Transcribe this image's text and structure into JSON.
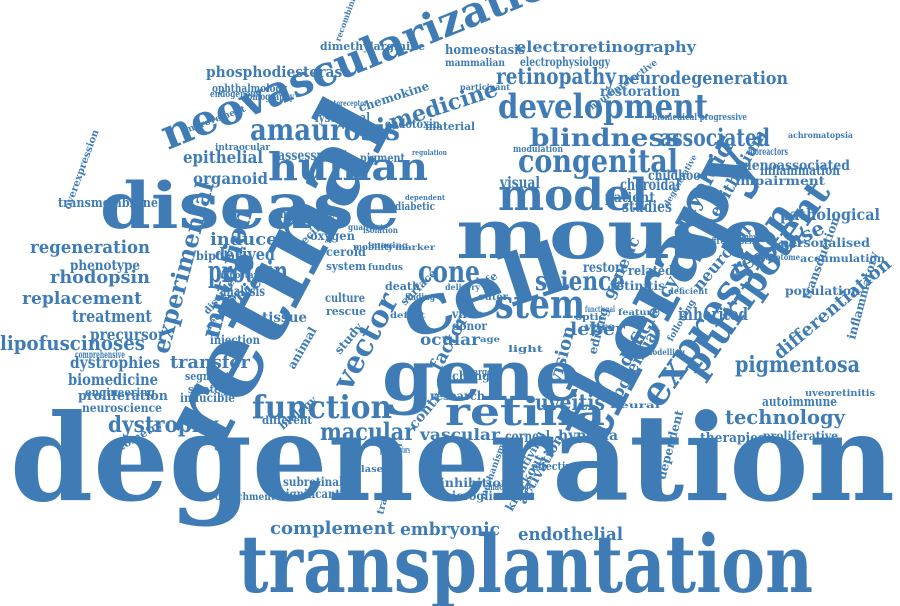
{
  "colors": {
    "word": "#3f7cb5",
    "background": "#ffffff"
  },
  "words": [
    "degeneration",
    "transplantation",
    "retinal",
    "therapy",
    "disease",
    "mouse",
    "gene",
    "cell",
    "neovascularization",
    "model",
    "expression",
    "retina",
    "development",
    "human",
    "amaurosis",
    "congenital",
    "stem",
    "function",
    "pluripotent",
    "protein",
    "mutation",
    "experimental",
    "blindness",
    "associated",
    "retinopathy",
    "neurodegeneration",
    "science",
    "vector",
    "pigmentosa",
    "technology",
    "macular",
    "uveitis",
    "regeneration",
    "replacement",
    "lipofuscinoses",
    "dystrophy",
    "dystrophies",
    "endothelial",
    "embryonic",
    "complement",
    "electroretinography",
    "phosphodiesterase",
    "rhodopsin",
    "treatment",
    "transfer",
    "derived",
    "induced",
    "clinical",
    "cone",
    "epithelial",
    "organoid",
    "myeloid",
    "epithelium",
    "inherited",
    "leber",
    "genetic",
    "visual",
    "vision",
    "vascular",
    "corneal",
    "hypoxia",
    "differentiation",
    "response",
    "neuronal",
    "inflammation",
    "adenoassociated",
    "studies",
    "choroidal",
    "patient",
    "childhood",
    "restoration",
    "homeostasis",
    "electrophysiology",
    "biomedicine",
    "proliferation",
    "neuroscience",
    "precursor",
    "phenotype",
    "medicine",
    "assessment",
    "pigment",
    "restore",
    "related",
    "autoimmune",
    "therapies",
    "proliferative",
    "transmembrane",
    "dimethylarginine",
    "ophthalmology",
    "chemokine",
    "lysosomal",
    "endotoxin",
    "pathological",
    "personalised",
    "accumulation",
    "inflammatory",
    "deficiency",
    "potential",
    "activation",
    "inhibition",
    "microglia",
    "subretinal",
    "significant",
    "cytometry",
    "segment",
    "strategy",
    "inducible",
    "comprehensive",
    "injection",
    "bipolar",
    "analysis",
    "ocular",
    "tissue",
    "oxygen",
    "membrane",
    "impairment",
    "population",
    "transduction",
    "factor",
    "retinitis",
    "research",
    "virus",
    "donor",
    "change",
    "control",
    "biology",
    "different",
    "detachment",
    "material",
    "mammalian",
    "tomography",
    "endogenous",
    "engineering",
    "overexpression",
    "improvement",
    "intraocular",
    "ceroid",
    "diabetic",
    "system",
    "culture",
    "rescue",
    "death",
    "surface",
    "animal",
    "specific",
    "receptor",
    "disorder",
    "mobility",
    "vitro",
    "editing",
    "transcription",
    "dependent",
    "macrophage",
    "antiviral",
    "knockout",
    "effective",
    "important",
    "neurotropism",
    "uveoretinitis",
    "modulation",
    "neuroprotective",
    "bioreactors",
    "biomedical progressive",
    "dependent",
    "angiography",
    "photoreceptor",
    "recombinant",
    "achromatopsia",
    "transcriptome",
    "degenerative",
    "photoreceptors",
    "cyclase",
    "guanylate",
    "isolation",
    "imaging",
    "marker",
    "fundus",
    "finding",
    "outer",
    "life",
    "light",
    "target",
    "study",
    "delivery",
    "defect",
    "age",
    "optic",
    "mechanism",
    "neural",
    "functional",
    "feature",
    "modelling",
    "following",
    "deficient",
    "participant",
    "regulation",
    "environment",
    "genotype"
  ]
}
